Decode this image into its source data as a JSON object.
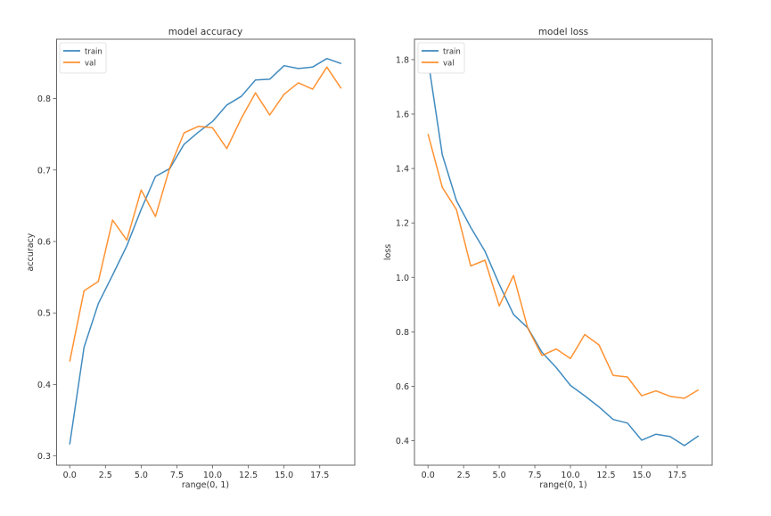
{
  "chart_data": [
    {
      "type": "line",
      "title": "model accuracy",
      "xlabel": "range(0, 1)",
      "ylabel": "accuracy",
      "x": [
        0,
        1,
        2,
        3,
        4,
        5,
        6,
        7,
        8,
        9,
        10,
        11,
        12,
        13,
        14,
        15,
        16,
        17,
        18,
        19
      ],
      "xlim": [
        -0.95,
        19.95
      ],
      "ylim": [
        0.287,
        0.883
      ],
      "xticks": [
        0.0,
        2.5,
        5.0,
        7.5,
        10.0,
        12.5,
        15.0,
        17.5
      ],
      "xtick_labels": [
        "0.0",
        "2.5",
        "5.0",
        "7.5",
        "10.0",
        "12.5",
        "15.0",
        "17.5"
      ],
      "yticks": [
        0.3,
        0.4,
        0.5,
        0.6,
        0.7,
        0.8
      ],
      "ytick_labels": [
        "0.3",
        "0.4",
        "0.5",
        "0.6",
        "0.7",
        "0.8"
      ],
      "grid": false,
      "legend_position": "upper left",
      "series": [
        {
          "name": "train",
          "color": "#1f77b4",
          "values": [
            0.316,
            0.452,
            0.513,
            0.553,
            0.594,
            0.645,
            0.691,
            0.702,
            0.736,
            0.753,
            0.768,
            0.791,
            0.803,
            0.826,
            0.827,
            0.846,
            0.842,
            0.844,
            0.856,
            0.849
          ]
        },
        {
          "name": "val",
          "color": "#ff7f0e",
          "values": [
            0.432,
            0.531,
            0.544,
            0.63,
            0.602,
            0.672,
            0.635,
            0.703,
            0.752,
            0.761,
            0.759,
            0.73,
            0.772,
            0.808,
            0.777,
            0.806,
            0.822,
            0.813,
            0.844,
            0.814
          ]
        }
      ]
    },
    {
      "type": "line",
      "title": "model loss",
      "xlabel": "range(0, 1)",
      "ylabel": "loss",
      "x": [
        0,
        1,
        2,
        3,
        4,
        5,
        6,
        7,
        8,
        9,
        10,
        11,
        12,
        13,
        14,
        15,
        16,
        17,
        18,
        19
      ],
      "xlim": [
        -0.95,
        19.95
      ],
      "ylim": [
        0.31,
        1.875
      ],
      "xticks": [
        0.0,
        2.5,
        5.0,
        7.5,
        10.0,
        12.5,
        15.0,
        17.5
      ],
      "xtick_labels": [
        "0.0",
        "2.5",
        "5.0",
        "7.5",
        "10.0",
        "12.5",
        "15.0",
        "17.5"
      ],
      "yticks": [
        0.4,
        0.6,
        0.8,
        1.0,
        1.2,
        1.4,
        1.6,
        1.8
      ],
      "ytick_labels": [
        "0.4",
        "0.6",
        "0.8",
        "1.0",
        "1.2",
        "1.4",
        "1.6",
        "1.8"
      ],
      "grid": false,
      "legend_position": "upper left",
      "series": [
        {
          "name": "train",
          "color": "#1f77b4",
          "values": [
            1.8,
            1.451,
            1.282,
            1.184,
            1.096,
            0.975,
            0.864,
            0.815,
            0.725,
            0.669,
            0.603,
            0.565,
            0.524,
            0.478,
            0.465,
            0.402,
            0.424,
            0.415,
            0.382,
            0.418
          ]
        },
        {
          "name": "val",
          "color": "#ff7f0e",
          "values": [
            1.527,
            1.331,
            1.249,
            1.042,
            1.063,
            0.895,
            1.007,
            0.815,
            0.713,
            0.737,
            0.702,
            0.79,
            0.752,
            0.64,
            0.634,
            0.565,
            0.583,
            0.563,
            0.556,
            0.587
          ]
        }
      ]
    }
  ]
}
